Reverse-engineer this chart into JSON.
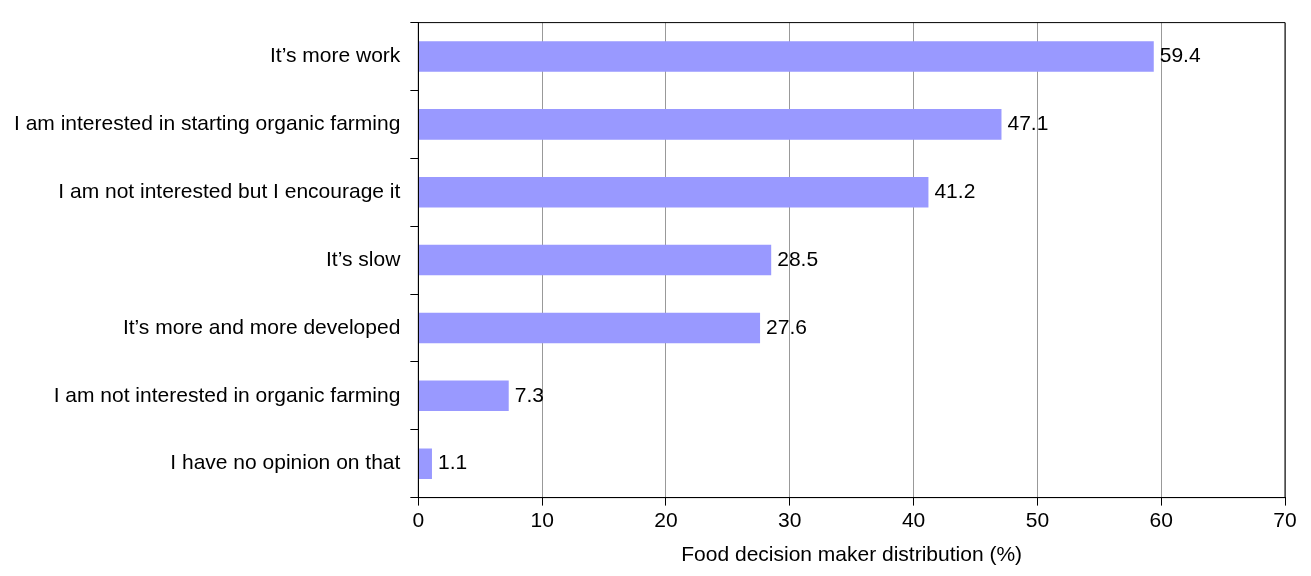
{
  "chart_data": {
    "type": "bar",
    "orientation": "horizontal",
    "xlabel": "Food decision maker distribution (%)",
    "categories": [
      "It’s more work",
      "I am interested in starting organic farming",
      "I am not interested but I encourage it",
      "It’s slow",
      "It’s more and more developed",
      "I am not interested in organic farming",
      "I have no opinion on that"
    ],
    "values": [
      59.4,
      47.1,
      41.2,
      28.5,
      27.6,
      7.3,
      1.1
    ],
    "color": "#9999ff",
    "xlim": [
      0,
      70
    ],
    "xticks": [
      0,
      10,
      20,
      30,
      40,
      50,
      60,
      70
    ],
    "grid": "x",
    "data_labels": true,
    "legend": false
  }
}
